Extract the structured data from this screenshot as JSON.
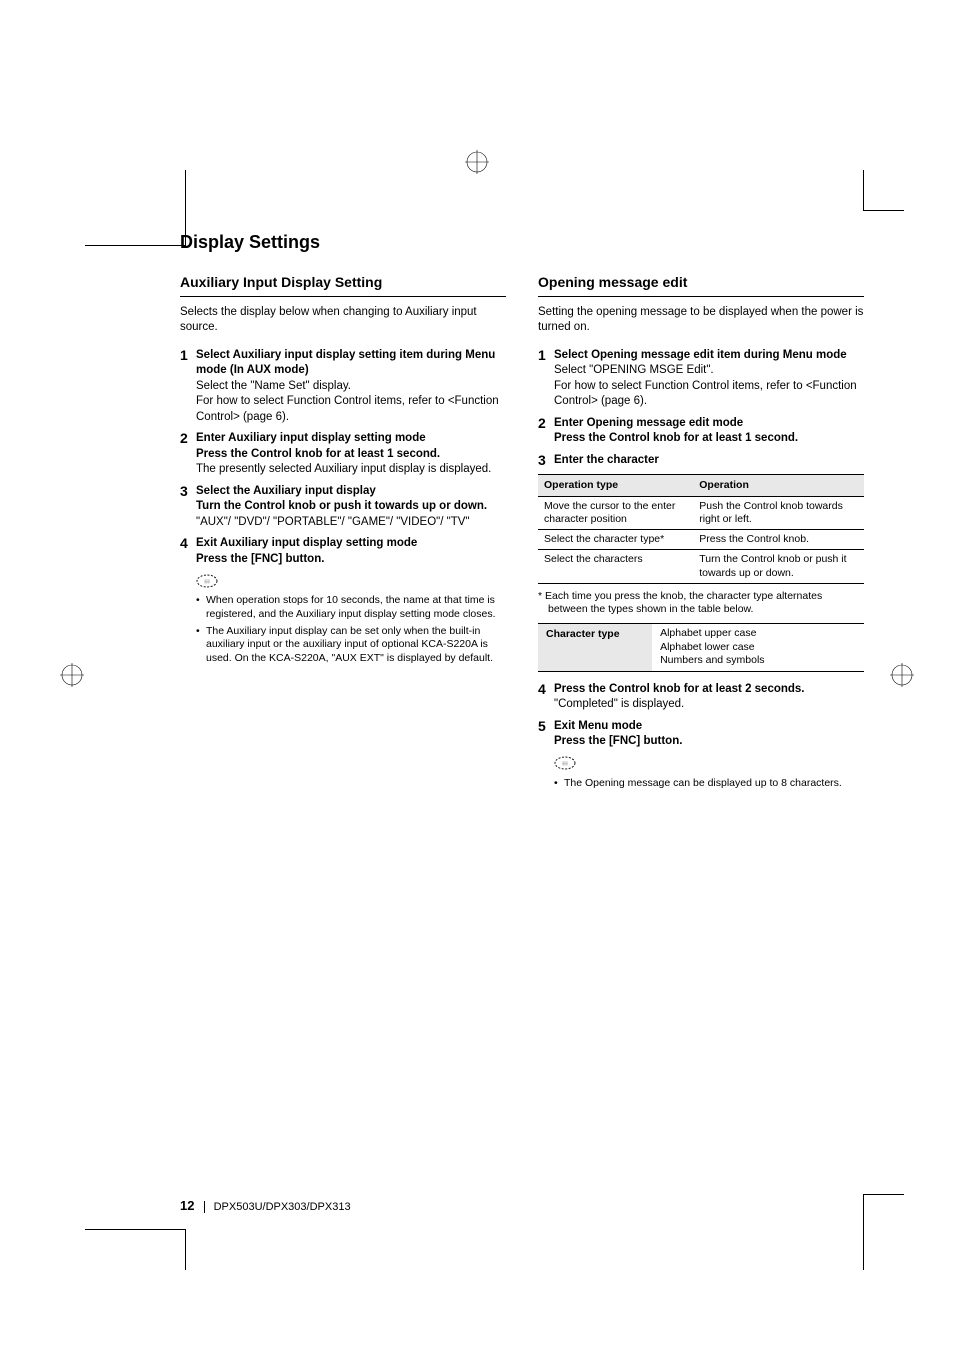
{
  "registration_marks": {
    "stroke": "#000000",
    "radius": 10
  },
  "crop_corners": {
    "stroke": "#000000"
  },
  "title": "Display Settings",
  "left": {
    "heading": "Auxiliary Input Display Setting",
    "intro": "Selects the display below when changing to Auxiliary input source.",
    "steps": [
      {
        "num": "1",
        "bold": "Select Auxiliary input display setting item during Menu mode (In AUX mode)",
        "plain": "Select the \"Name Set\" display.\nFor how to select Function Control items, refer to <Function Control> (page 6)."
      },
      {
        "num": "2",
        "bold": "Enter Auxiliary input display setting mode\nPress the Control knob for at least 1 second.",
        "plain": "The presently selected Auxiliary input display is displayed."
      },
      {
        "num": "3",
        "bold": "Select the Auxiliary input display\nTurn the Control knob or push it towards up or down.",
        "plain": "\"AUX\"/ \"DVD\"/ \"PORTABLE\"/ \"GAME\"/ \"VIDEO\"/ \"TV\""
      },
      {
        "num": "4",
        "bold": "Exit Auxiliary input display setting mode\nPress the [FNC] button.",
        "plain": ""
      }
    ],
    "notes": [
      "When operation stops for 10 seconds, the name at that time is registered, and the Auxiliary input display setting mode closes.",
      "The Auxiliary input display can be set only when the built-in auxiliary input or the auxiliary input of optional KCA-S220A is used. On the KCA-S220A, \"AUX EXT\" is displayed by default."
    ]
  },
  "right": {
    "heading": "Opening message edit",
    "intro": "Setting the opening message to be displayed when the power is turned on.",
    "steps_a": [
      {
        "num": "1",
        "bold": "Select Opening message edit item during Menu mode",
        "plain": "Select \"OPENING MSGE Edit\".\nFor how to select Function Control items, refer to <Function Control> (page 6)."
      },
      {
        "num": "2",
        "bold": "Enter Opening message edit mode\nPress the Control knob for at least 1 second.",
        "plain": ""
      },
      {
        "num": "3",
        "bold": "Enter the character",
        "plain": ""
      }
    ],
    "table_op": {
      "headers": [
        "Operation type",
        "Operation"
      ],
      "rows": [
        [
          "Move the cursor to the enter character position",
          "Push the Control knob towards right or left."
        ],
        [
          "Select the character type*",
          "Press the Control knob."
        ],
        [
          "Select the characters",
          "Turn the Control knob or push it towards up or down."
        ]
      ]
    },
    "star_note": "* Each time you press the knob, the character type alternates between the types shown in the table below.",
    "table_char": {
      "header": "Character type",
      "values": "Alphabet upper case\nAlphabet lower case\nNumbers and symbols"
    },
    "steps_b": [
      {
        "num": "4",
        "bold": "Press the Control knob for at least 2 seconds.",
        "plain": "\"Completed\" is displayed."
      },
      {
        "num": "5",
        "bold": "Exit Menu mode\nPress the [FNC] button.",
        "plain": ""
      }
    ],
    "notes": [
      "The Opening message can be displayed up to 8 characters."
    ]
  },
  "footer": {
    "page_num": "12",
    "model": "DPX503U/DPX303/DPX313"
  }
}
